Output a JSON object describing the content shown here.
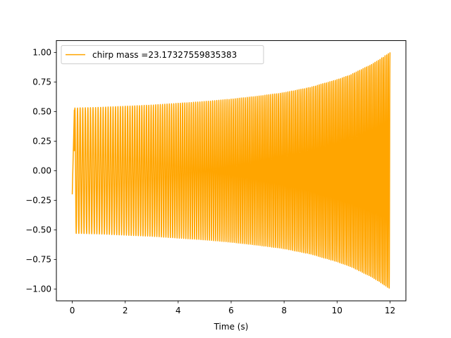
{
  "chart_data": {
    "type": "line",
    "title": "",
    "xlabel": "Time (s)",
    "ylabel": "",
    "xlim": [
      -0.6,
      12.6
    ],
    "ylim": [
      -1.1,
      1.1
    ],
    "x_ticks": [
      "0",
      "2",
      "4",
      "6",
      "8",
      "10",
      "12"
    ],
    "x_tick_values": [
      0,
      2,
      4,
      6,
      8,
      10,
      12
    ],
    "y_ticks": [
      "1.00",
      "0.75",
      "0.50",
      "0.25",
      "0.00",
      "−0.25",
      "−0.50",
      "−0.75",
      "−1.00"
    ],
    "y_tick_values": [
      1.0,
      0.75,
      0.5,
      0.25,
      0.0,
      -0.25,
      -0.5,
      -0.75,
      -1.0
    ],
    "grid": false,
    "legend_position": "top-left",
    "series": [
      {
        "name": "chirp mass =23.17327559835383",
        "color": "#ffa500",
        "t_start": 0,
        "t_end": 12,
        "initial_value": -0.2,
        "envelope": {
          "t": [
            0.1,
            1,
            2,
            3,
            4,
            5,
            6,
            7,
            8,
            9,
            10,
            10.5,
            11,
            11.5,
            12
          ],
          "amp": [
            0.53,
            0.535,
            0.545,
            0.555,
            0.57,
            0.585,
            0.605,
            0.63,
            0.66,
            0.705,
            0.77,
            0.81,
            0.865,
            0.925,
            1.0
          ]
        },
        "cycles": [
          {
            "t": 0,
            "n": 0
          },
          {
            "t": 12,
            "n": 160
          }
        ],
        "freq_start": 10,
        "freq_end": 16
      }
    ]
  }
}
